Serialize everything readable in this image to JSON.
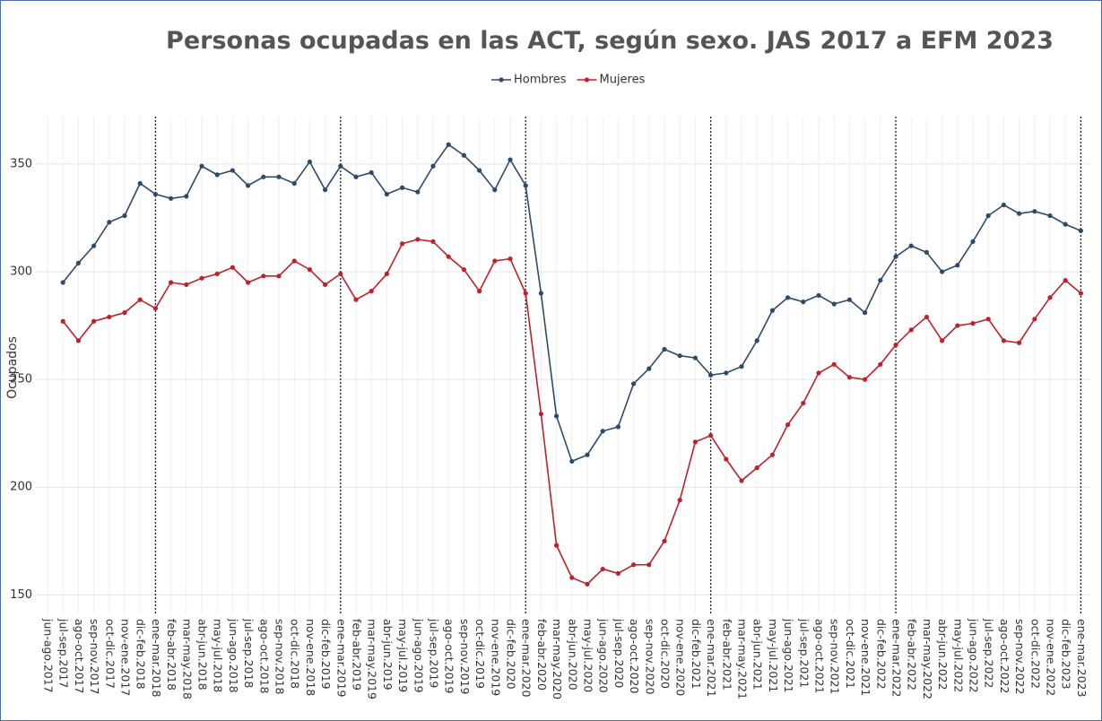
{
  "chart_data": {
    "type": "line",
    "title": "Personas ocupadas en las ACT, según sexo. JAS 2017 a EFM 2023",
    "y_label": "Ocupados",
    "categories": [
      "jun-ago.2017",
      "jul-sep.2017",
      "ago-oct.2017",
      "sep-nov.2017",
      "oct-dic.2017",
      "nov-ene.2017",
      "dic-feb.2018",
      "ene-mar.2018",
      "feb-abr.2018",
      "mar-may.2018",
      "abr-jun.2018",
      "may-jul.2018",
      "jun-ago.2018",
      "jul-sep.2018",
      "ago-oct.2018",
      "sep-nov.2018",
      "oct-dic.2018",
      "nov-ene.2018",
      "dic-feb.2019",
      "ene-mar.2019",
      "feb-abr.2019",
      "mar-may.2019",
      "abr-jun.2019",
      "may-jul.2019",
      "jun-ago.2019",
      "jul-sep.2019",
      "ago-oct.2019",
      "sep-nov.2019",
      "oct-dic.2019",
      "nov-ene.2019",
      "dic-feb.2020",
      "ene-mar.2020",
      "feb-abr.2020",
      "mar-may.2020",
      "abr-jun.2020",
      "may-jul.2020",
      "jun-ago.2020",
      "jul-sep.2020",
      "ago-oct.2020",
      "sep-nov.2020",
      "oct-dic.2020",
      "nov-ene.2020",
      "dic-feb.2021",
      "ene-mar.2021",
      "feb-abr.2021",
      "mar-may.2021",
      "abr-jun.2021",
      "may-jul.2021",
      "jun-ago.2021",
      "jul-sep.2021",
      "ago-oct.2021",
      "sep-nov.2021",
      "oct-dic.2021",
      "nov-ene.2021",
      "dic-feb.2022",
      "ene-mar.2022",
      "feb-abr.2022",
      "mar-may.2022",
      "abr-jun.2022",
      "may-jul.2022",
      "jun-ago.2022",
      "jul-sep.2022",
      "ago-oct.2022",
      "sep-nov.2022",
      "oct-dic.2022",
      "nov-ene.2022",
      "dic-feb.2023",
      "ene-mar.2023"
    ],
    "series": [
      {
        "name": "Hombres",
        "color": "#2e4a6b",
        "values": [
          null,
          295,
          304,
          312,
          323,
          326,
          341,
          336,
          334,
          335,
          349,
          345,
          347,
          340,
          344,
          344,
          341,
          351,
          338,
          349,
          344,
          346,
          336,
          339,
          337,
          349,
          359,
          354,
          347,
          338,
          352,
          340,
          290,
          233,
          212,
          215,
          226,
          228,
          248,
          255,
          264,
          261,
          260,
          252,
          253,
          256,
          268,
          282,
          288,
          286,
          289,
          285,
          287,
          281,
          296,
          307,
          312,
          309,
          300,
          303,
          314,
          326,
          331,
          327,
          328,
          326,
          322,
          319
        ]
      },
      {
        "name": "Mujeres",
        "color": "#c0202a",
        "values": [
          null,
          277,
          268,
          277,
          279,
          281,
          287,
          283,
          295,
          294,
          297,
          299,
          302,
          295,
          298,
          298,
          305,
          301,
          294,
          299,
          287,
          291,
          299,
          313,
          315,
          314,
          307,
          301,
          291,
          305,
          306,
          290,
          234,
          173,
          158,
          155,
          162,
          160,
          164,
          164,
          175,
          194,
          221,
          224,
          213,
          203,
          209,
          215,
          229,
          239,
          253,
          257,
          251,
          250,
          257,
          266,
          273,
          279,
          268,
          275,
          276,
          278,
          268,
          267,
          278,
          288,
          296,
          290
        ]
      }
    ],
    "vlines": [
      "ene-mar.2018",
      "ene-mar.2019",
      "ene-mar.2020",
      "ene-mar.2021",
      "ene-mar.2022",
      "ene-mar.2023"
    ],
    "ylim": [
      141,
      372
    ],
    "yticks": [
      150,
      200,
      250,
      300,
      350
    ],
    "grid": true,
    "legend": "top"
  }
}
